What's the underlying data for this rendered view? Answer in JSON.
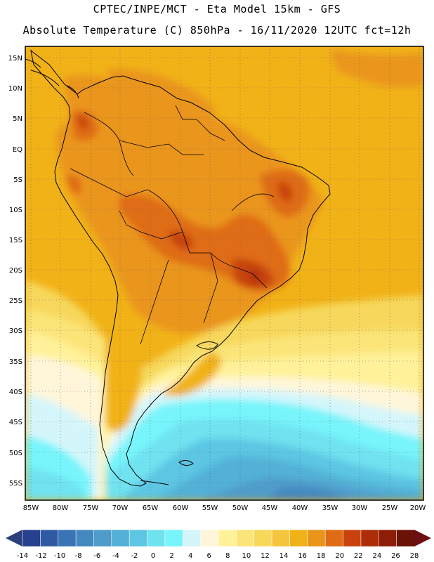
{
  "header": {
    "line1": "CPTEC/INPE/MCT -  Eta Model 15km - GFS",
    "line2": "Absolute Temperature (C) 850hPa - 16/11/2020 12UTC fct=12h"
  },
  "map": {
    "lat_labels": [
      "15N",
      "10N",
      "5N",
      "EQ",
      "5S",
      "10S",
      "15S",
      "20S",
      "25S",
      "30S",
      "35S",
      "40S",
      "45S",
      "50S",
      "55S"
    ],
    "lon_labels": [
      "85W",
      "80W",
      "75W",
      "70W",
      "65W",
      "60W",
      "55W",
      "50W",
      "45W",
      "40W",
      "35W",
      "30W",
      "25W",
      "20W"
    ]
  },
  "colorbar": {
    "ticks": [
      "-14",
      "-12",
      "-10",
      "-8",
      "-6",
      "-4",
      "-2",
      "0",
      "2",
      "4",
      "6",
      "8",
      "10",
      "12",
      "14",
      "16",
      "18",
      "20",
      "22",
      "24",
      "26",
      "28"
    ],
    "colors": [
      "#27418f",
      "#2f5aa3",
      "#3a74b6",
      "#4488c0",
      "#4f9ccb",
      "#53b0d6",
      "#5cc6e3",
      "#6fe2f0",
      "#77f5fb",
      "#d4f6fb",
      "#fff6da",
      "#fff29a",
      "#fbe579",
      "#f7d85b",
      "#f5c63d",
      "#f1b218",
      "#ea951a",
      "#df6c14",
      "#c8430b",
      "#ad2d08",
      "#8c1d06",
      "#6b1207"
    ],
    "arrow_low": "#2a3f7c",
    "arrow_high": "#6b0f12"
  }
}
